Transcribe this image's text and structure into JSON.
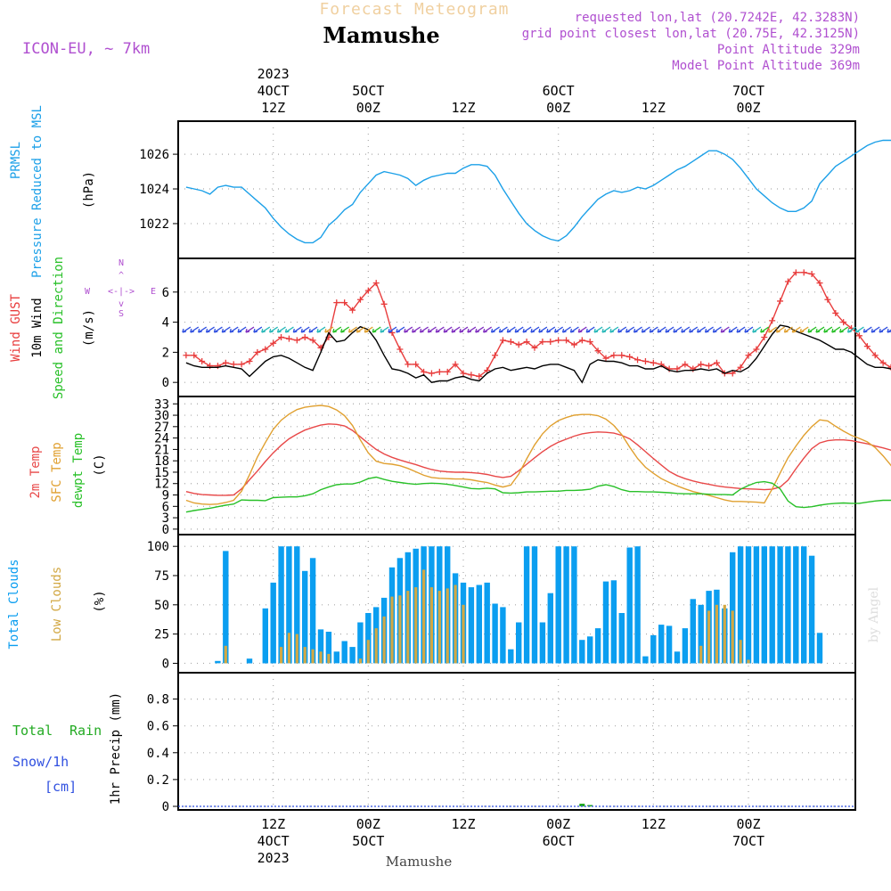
{
  "header": {
    "forecast_title": "Forecast Meteogram",
    "location": "Mamushe",
    "model": "ICON-EU, ~ 7km",
    "requested": "requested lon,lat (20.7242E, 42.3283N)",
    "grid": "grid point closest lon,lat (20.75E, 42.3125N)",
    "point_alt": "Point Altitude 329m",
    "model_alt": "Model Point Altitude 369m",
    "footer_location": "Mamushe",
    "credit": "by Angel"
  },
  "time_axis": {
    "top_labels": [
      {
        "hour": 12,
        "lines": [
          "2023",
          "4OCT",
          "12Z"
        ]
      },
      {
        "hour": 24,
        "lines": [
          "5OCT",
          "00Z"
        ]
      },
      {
        "hour": 36,
        "lines": [
          "12Z"
        ]
      },
      {
        "hour": 48,
        "lines": [
          "6OCT",
          "00Z"
        ]
      },
      {
        "hour": 60,
        "lines": [
          "12Z"
        ]
      },
      {
        "hour": 72,
        "lines": [
          "7OCT",
          "00Z"
        ]
      }
    ],
    "bottom_labels": [
      {
        "hour": 12,
        "lines": [
          "12Z",
          "4OCT",
          "2023"
        ]
      },
      {
        "hour": 24,
        "lines": [
          "00Z",
          "5OCT"
        ]
      },
      {
        "hour": 36,
        "lines": [
          "12Z"
        ]
      },
      {
        "hour": 48,
        "lines": [
          "00Z",
          "6OCT"
        ]
      },
      {
        "hour": 60,
        "lines": [
          "12Z"
        ]
      },
      {
        "hour": 72,
        "lines": [
          "00Z",
          "7OCT"
        ]
      }
    ]
  },
  "panels": {
    "pressure": {
      "label1": "PRMSL",
      "label2": "Pressure Reduced to MSL",
      "unit": "(hPa)",
      "ticks": [
        "1022",
        "1024",
        "1026"
      ]
    },
    "wind": {
      "label_gust": "Wind GUST",
      "label_wind": "10m Wind",
      "label_dir": "Speed and Direction",
      "unit": "(m/s)",
      "compass_n": "N",
      "compass_s": "S",
      "compass_w": "W",
      "compass_e": "E",
      "ticks": [
        "0",
        "2",
        "4",
        "6"
      ]
    },
    "temp": {
      "label_2m": "2m Temp",
      "label_sfc": "SFC Temp",
      "label_dew": "dewpt Temp",
      "unit": "(C)",
      "ticks": [
        "0",
        "3",
        "6",
        "9",
        "12",
        "15",
        "18",
        "21",
        "24",
        "27",
        "30",
        "33"
      ]
    },
    "clouds": {
      "label_total": "Total Clouds",
      "label_low": "Low Clouds",
      "unit": "(%)",
      "ticks": [
        "0",
        "25",
        "50",
        "75",
        "100"
      ]
    },
    "precip": {
      "label_rain_a": "Total",
      "label_rain_b": "Rain",
      "label_snow": "Snow/1h",
      "label_cm": "[cm]",
      "unit": "1hr Precip (mm)",
      "ticks": [
        "0",
        "0.2",
        "0.4",
        "0.6",
        "0.8"
      ]
    }
  },
  "colors": {
    "pressure": "#1ca0e8",
    "gust": "#e83c3c",
    "wind": "#000000",
    "t2m": "#e84848",
    "sfc": "#e0a030",
    "dew": "#28c028",
    "total_cloud": "#0b9ef0",
    "low_cloud": "#d2a844",
    "rain": "#22aa22",
    "label_purple": "#b050d0",
    "title_orange": "#f0d0a0"
  },
  "chart_data": [
    {
      "type": "line",
      "name": "PRMSL",
      "x_start_hour": 1,
      "x_step": 1,
      "ylim": [
        1020.2,
        1027.7
      ],
      "values": [
        1024.1,
        1024.0,
        1023.9,
        1023.7,
        1024.1,
        1024.2,
        1024.1,
        1024.1,
        1023.7,
        1023.3,
        1022.9,
        1022.3,
        1021.8,
        1021.4,
        1021.1,
        1020.9,
        1020.9,
        1021.2,
        1021.9,
        1022.3,
        1022.8,
        1023.1,
        1023.8,
        1024.3,
        1024.8,
        1025.0,
        1024.9,
        1024.8,
        1024.6,
        1024.2,
        1024.5,
        1024.7,
        1024.8,
        1024.9,
        1024.9,
        1025.2,
        1025.4,
        1025.4,
        1025.3,
        1024.8,
        1024.0,
        1023.3,
        1022.6,
        1022.0,
        1021.6,
        1021.3,
        1021.1,
        1021.0,
        1021.3,
        1021.8,
        1022.4,
        1022.9,
        1023.4,
        1023.7,
        1023.9,
        1023.8,
        1023.9,
        1024.1,
        1024.0,
        1024.2,
        1024.5,
        1024.8,
        1025.1,
        1025.3,
        1025.6,
        1025.9,
        1026.2,
        1026.2,
        1026.0,
        1025.7,
        1025.2,
        1024.6,
        1024.0,
        1023.6,
        1023.2,
        1022.9,
        1022.7,
        1022.7,
        1022.9,
        1023.3,
        1024.3,
        1024.8,
        1025.3,
        1025.6,
        1025.9,
        1026.2,
        1026.5,
        1026.7,
        1026.8,
        1026.8,
        1026.8,
        1026.9,
        1026.9,
        1026.9,
        1027.0,
        1027.0,
        1027.1
      ]
    },
    {
      "type": "line",
      "name": "Wind GUST",
      "x_start_hour": 1,
      "x_step": 1,
      "ylim": [
        -0.7,
        8.0
      ],
      "values": [
        1.8,
        1.8,
        1.4,
        1.1,
        1.1,
        1.3,
        1.2,
        1.2,
        1.4,
        2.0,
        2.2,
        2.6,
        3.0,
        2.9,
        2.8,
        3.0,
        2.8,
        2.3,
        3.0,
        5.3,
        5.3,
        4.8,
        5.5,
        6.1,
        6.6,
        5.2,
        3.3,
        2.2,
        1.2,
        1.2,
        0.7,
        0.6,
        0.7,
        0.7,
        1.2,
        0.6,
        0.5,
        0.4,
        0.8,
        1.8,
        2.8,
        2.7,
        2.5,
        2.7,
        2.3,
        2.7,
        2.7,
        2.8,
        2.8,
        2.5,
        2.8,
        2.7,
        2.1,
        1.6,
        1.8,
        1.8,
        1.7,
        1.5,
        1.4,
        1.3,
        1.2,
        0.9,
        0.9,
        1.2,
        0.9,
        1.2,
        1.1,
        1.3,
        0.6,
        0.6,
        1.0,
        1.8,
        2.2,
        3.0,
        4.1,
        5.4,
        6.7,
        7.3,
        7.3,
        7.2,
        6.6,
        5.5,
        4.6,
        4.0,
        3.6,
        3.1,
        2.4,
        1.8,
        1.3,
        1.0,
        0.8,
        0.7,
        0.6,
        0.7,
        0.7,
        0.8,
        0.8
      ]
    },
    {
      "type": "line",
      "name": "10m Wind",
      "x_start_hour": 1,
      "x_step": 1,
      "ylim": [
        -0.7,
        8.0
      ],
      "values": [
        1.3,
        1.1,
        1.0,
        1.0,
        1.0,
        1.1,
        1.0,
        0.9,
        0.4,
        0.9,
        1.4,
        1.7,
        1.8,
        1.6,
        1.3,
        1.0,
        0.8,
        2.0,
        3.3,
        2.7,
        2.8,
        3.3,
        3.7,
        3.5,
        2.8,
        1.8,
        0.9,
        0.8,
        0.6,
        0.3,
        0.5,
        0.0,
        0.1,
        0.1,
        0.3,
        0.4,
        0.2,
        0.1,
        0.6,
        0.9,
        1.0,
        0.8,
        0.9,
        1.0,
        0.9,
        1.1,
        1.2,
        1.2,
        1.0,
        0.8,
        0.0,
        1.2,
        1.5,
        1.4,
        1.4,
        1.3,
        1.1,
        1.1,
        0.9,
        0.9,
        1.1,
        0.8,
        0.7,
        0.8,
        0.8,
        0.9,
        0.8,
        0.9,
        0.6,
        0.8,
        0.7,
        1.0,
        1.6,
        2.4,
        3.2,
        3.8,
        3.7,
        3.4,
        3.2,
        3.0,
        2.8,
        2.5,
        2.2,
        2.2,
        2.0,
        1.6,
        1.2,
        1.0,
        1.0,
        0.9,
        0.9,
        0.9,
        0.9,
        0.8,
        0.9,
        0.9,
        0.9
      ]
    },
    {
      "type": "line",
      "name": "2m Temp",
      "x_start_hour": 1,
      "x_step": 1,
      "ylim": [
        -0.5,
        34.0
      ],
      "values": [
        9.9,
        9.4,
        9.1,
        9.0,
        8.9,
        8.9,
        9.0,
        10.6,
        13.0,
        15.3,
        17.8,
        20.1,
        22.1,
        23.8,
        25.0,
        26.1,
        26.8,
        27.4,
        27.7,
        27.6,
        27.2,
        26.0,
        24.3,
        22.6,
        21.0,
        19.8,
        18.9,
        18.2,
        17.6,
        17.0,
        16.3,
        15.7,
        15.3,
        15.1,
        15.0,
        15.0,
        14.9,
        14.7,
        14.4,
        13.9,
        13.6,
        13.9,
        15.4,
        17.1,
        18.8,
        20.4,
        21.8,
        22.9,
        23.7,
        24.5,
        25.1,
        25.4,
        25.6,
        25.5,
        25.3,
        24.7,
        23.8,
        22.2,
        20.4,
        18.6,
        16.9,
        15.2,
        14.1,
        13.3,
        12.7,
        12.2,
        11.8,
        11.4,
        11.1,
        10.9,
        10.7,
        10.6,
        10.5,
        10.4,
        10.5,
        11.1,
        12.9,
        15.9,
        18.7,
        21.2,
        22.7,
        23.3,
        23.5,
        23.5,
        23.3,
        22.9,
        22.5,
        21.9,
        21.4,
        20.8,
        19.5,
        16.8,
        14.7,
        13.6,
        13.1,
        12.4,
        11.6,
        10.9,
        10.3,
        9.7,
        9.2,
        8.7,
        8.2,
        7.8,
        7.4,
        7.0,
        6.6,
        6.2,
        5.8,
        5.4,
        5.1
      ]
    },
    {
      "type": "line",
      "name": "SFC Temp",
      "x_start_hour": 1,
      "x_step": 1,
      "ylim": [
        -0.5,
        34.0
      ],
      "values": [
        7.6,
        6.9,
        6.6,
        6.5,
        6.6,
        7.0,
        7.6,
        10.0,
        14.3,
        19.0,
        22.8,
        26.3,
        28.7,
        30.3,
        31.5,
        32.1,
        32.4,
        32.6,
        32.3,
        31.4,
        29.9,
        27.3,
        23.5,
        20.1,
        17.9,
        17.3,
        17.1,
        16.7,
        16.0,
        15.1,
        14.2,
        13.6,
        13.4,
        13.3,
        13.2,
        13.2,
        13.0,
        12.6,
        12.3,
        11.6,
        11.1,
        11.6,
        14.5,
        18.5,
        22.2,
        25.1,
        27.2,
        28.6,
        29.4,
        30.0,
        30.2,
        30.2,
        29.9,
        29.0,
        27.3,
        24.9,
        21.6,
        18.6,
        16.3,
        14.7,
        13.3,
        12.3,
        11.4,
        10.6,
        9.9,
        9.4,
        8.9,
        8.3,
        7.7,
        7.3,
        7.3,
        7.2,
        7.1,
        6.9,
        10.6,
        14.8,
        18.8,
        21.9,
        24.7,
        27.0,
        28.8,
        28.5,
        27.1,
        25.8,
        24.7,
        23.9,
        23.0,
        21.5,
        19.3,
        16.8,
        14.1,
        11.8,
        10.8,
        10.4,
        9.8,
        9.2,
        8.5,
        7.8,
        7.1,
        6.4,
        5.8,
        5.2,
        4.6,
        4.1,
        3.6,
        3.1,
        2.6,
        2.3,
        2.0,
        1.7,
        1.5
      ]
    },
    {
      "type": "line",
      "name": "dewpt Temp",
      "x_start_hour": 1,
      "x_step": 1,
      "ylim": [
        -0.5,
        34.0
      ],
      "values": [
        4.5,
        4.9,
        5.2,
        5.5,
        5.9,
        6.3,
        6.6,
        7.7,
        7.6,
        7.6,
        7.5,
        8.3,
        8.4,
        8.5,
        8.5,
        8.8,
        9.3,
        10.4,
        11.1,
        11.7,
        11.9,
        11.9,
        12.4,
        13.3,
        13.7,
        13.1,
        12.6,
        12.3,
        12.0,
        11.8,
        12.0,
        12.1,
        12.0,
        11.8,
        11.5,
        11.1,
        10.7,
        10.6,
        10.8,
        10.6,
        9.6,
        9.5,
        9.6,
        9.8,
        9.8,
        9.9,
        10.0,
        10.0,
        10.2,
        10.2,
        10.3,
        10.5,
        11.3,
        11.7,
        11.2,
        10.4,
        9.9,
        9.9,
        9.8,
        9.8,
        9.7,
        9.6,
        9.4,
        9.3,
        9.3,
        9.3,
        9.2,
        9.1,
        9.1,
        9.0,
        10.5,
        11.5,
        12.3,
        12.5,
        12.1,
        10.6,
        7.4,
        5.9,
        5.7,
        5.9,
        6.3,
        6.6,
        6.8,
        6.9,
        6.8,
        6.8,
        7.1,
        7.4,
        7.6,
        7.6,
        7.6,
        7.3,
        7.1,
        6.9,
        6.7,
        6.5,
        6.3,
        6.0,
        5.7,
        5.3,
        4.9,
        4.6,
        4.2,
        3.9,
        3.6,
        3.4,
        3.2,
        3.1,
        3.0
      ]
    },
    {
      "type": "bar",
      "name": "Total Clouds",
      "x_start_hour": 1,
      "x_step": 1,
      "ylim": [
        -5,
        107
      ],
      "values": [
        0,
        0,
        0,
        0,
        2,
        96,
        0,
        0,
        4,
        0,
        47,
        69,
        100,
        100,
        100,
        79,
        90,
        29,
        27,
        10,
        19,
        14,
        35,
        43,
        48,
        56,
        82,
        90,
        95,
        98,
        100,
        100,
        100,
        100,
        77,
        69,
        65,
        67,
        69,
        51,
        48,
        12,
        35,
        100,
        100,
        35,
        60,
        100,
        100,
        100,
        20,
        23,
        30,
        70,
        71,
        43,
        99,
        100,
        6,
        24,
        33,
        32,
        10,
        30,
        55,
        50,
        62,
        63,
        47,
        95,
        100,
        100,
        100,
        100,
        100,
        100,
        100,
        100,
        100,
        92,
        26,
        0,
        0,
        0,
        0,
        0,
        0,
        0,
        0,
        0,
        0,
        0,
        0,
        0,
        0,
        0,
        0,
        0,
        0,
        16,
        0
      ]
    },
    {
      "type": "bar",
      "name": "Low Clouds",
      "x_start_hour": 1,
      "x_step": 1,
      "ylim": [
        -5,
        107
      ],
      "values": [
        0,
        0,
        0,
        0,
        0,
        15,
        0,
        0,
        0,
        0,
        0,
        0,
        14,
        26,
        25,
        14,
        12,
        10,
        8,
        0,
        0,
        0,
        4,
        20,
        30,
        40,
        57,
        58,
        62,
        65,
        80,
        65,
        62,
        64,
        67,
        50,
        0,
        0,
        0,
        0,
        0,
        0,
        0,
        0,
        0,
        0,
        0,
        0,
        0,
        0,
        0,
        0,
        0,
        0,
        0,
        0,
        0,
        0,
        0,
        0,
        0,
        0,
        0,
        0,
        0,
        15,
        45,
        50,
        50,
        45,
        20,
        3,
        0,
        0,
        0,
        0,
        0,
        0,
        0,
        0,
        0,
        0,
        0,
        0,
        0,
        0,
        0,
        0,
        0,
        0,
        0,
        0,
        0,
        0,
        0,
        0,
        0,
        0,
        0,
        0,
        0
      ]
    },
    {
      "type": "bar",
      "name": "1hr Precip",
      "x_start_hour": 1,
      "x_step": 1,
      "ylim": [
        0,
        0.97
      ],
      "values": [
        0,
        0,
        0,
        0,
        0,
        0,
        0,
        0,
        0,
        0,
        0,
        0,
        0,
        0,
        0,
        0,
        0,
        0,
        0,
        0,
        0,
        0,
        0,
        0,
        0,
        0,
        0,
        0,
        0,
        0,
        0,
        0,
        0,
        0,
        0,
        0,
        0,
        0,
        0,
        0,
        0,
        0,
        0,
        0,
        0,
        0,
        0,
        0,
        0,
        0,
        0.02,
        0.01,
        0,
        0,
        0,
        0,
        0,
        0,
        0,
        0,
        0,
        0,
        0,
        0,
        0,
        0,
        0,
        0,
        0,
        0,
        0,
        0,
        0,
        0,
        0,
        0,
        0,
        0,
        0,
        0,
        0,
        0,
        0,
        0,
        0,
        0,
        0,
        0,
        0,
        0,
        0,
        0,
        0,
        0,
        0,
        0,
        0,
        0,
        0
      ]
    }
  ],
  "wind_barbs_y": 3.5
}
